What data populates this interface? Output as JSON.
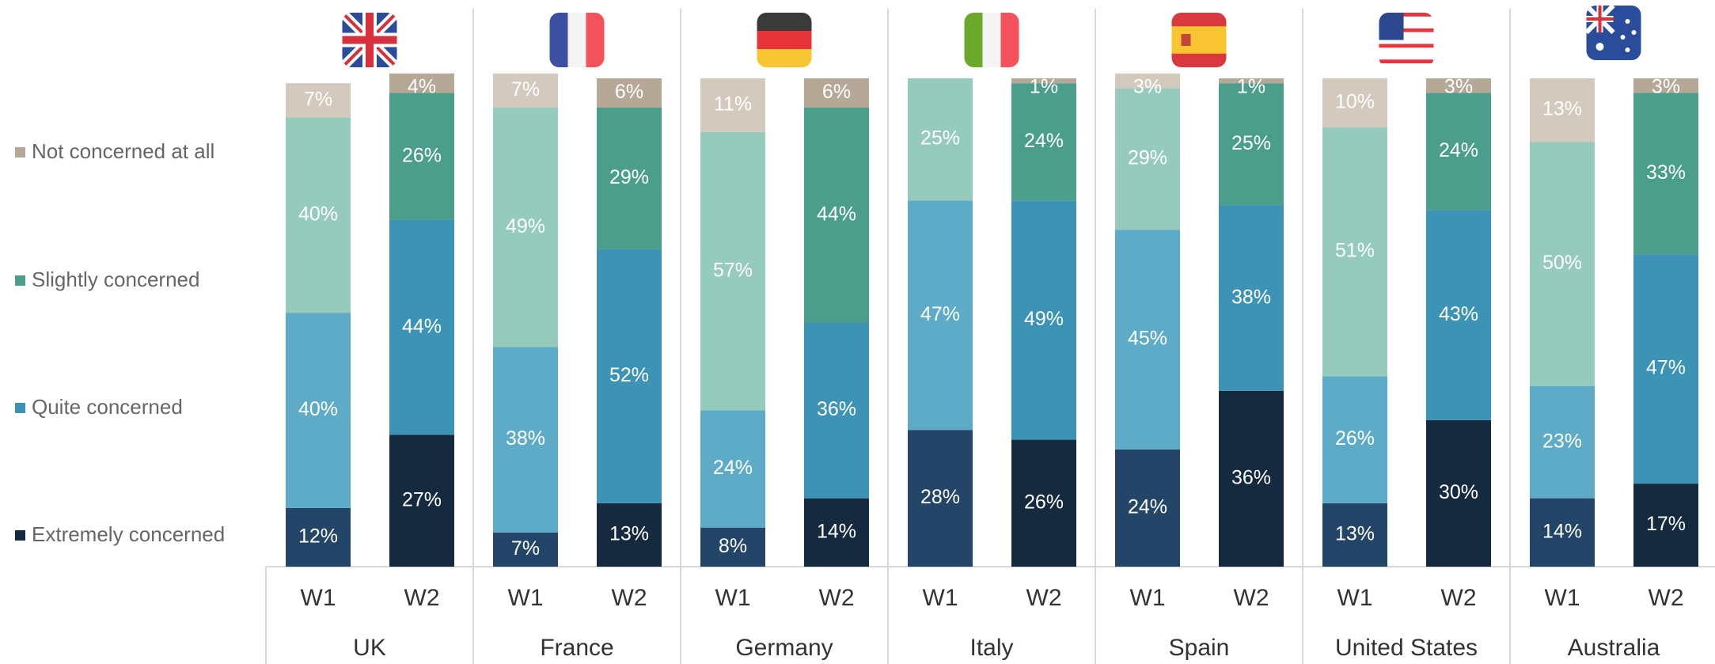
{
  "chart_data": {
    "type": "stacked-bar",
    "groups": [
      "UK",
      "France",
      "Germany",
      "Italy",
      "Spain",
      "United States",
      "Australia"
    ],
    "categories": [
      "W1",
      "W2",
      "W1",
      "W2",
      "W1",
      "W2",
      "W1",
      "W2",
      "W1",
      "W2",
      "W1",
      "W2",
      "W1",
      "W2"
    ],
    "ylim": [
      0,
      100
    ],
    "series": [
      {
        "name": "Extremely concerned",
        "color": "#152a3f",
        "light_color": "#234567",
        "values": [
          12,
          27,
          7,
          13,
          8,
          14,
          28,
          26,
          24,
          36,
          13,
          30,
          14,
          17
        ],
        "value_labels": [
          "12%",
          "27%",
          "7%",
          "13%",
          "8%",
          "14%",
          "28%",
          "26%",
          "24%",
          "36%",
          "13%",
          "30%",
          "14%",
          "17%"
        ]
      },
      {
        "name": "Quite concerned",
        "color": "#3d93b5",
        "light_color": "#5eabc8",
        "values": [
          40,
          44,
          38,
          52,
          24,
          36,
          47,
          49,
          45,
          38,
          26,
          43,
          23,
          47
        ],
        "value_labels": [
          "40%",
          "44%",
          "38%",
          "52%",
          "24%",
          "36%",
          "47%",
          "49%",
          "45%",
          "38%",
          "26%",
          "43%",
          "23%",
          "47%"
        ]
      },
      {
        "name": "Slightly concerned",
        "color": "#4a9e8a",
        "light_color": "#95cbbd",
        "values": [
          40,
          26,
          49,
          29,
          57,
          44,
          25,
          24,
          29,
          25,
          51,
          24,
          50,
          33
        ],
        "value_labels": [
          "40%",
          "26%",
          "49%",
          "29%",
          "57%",
          "44%",
          "25%",
          "24%",
          "29%",
          "25%",
          "51%",
          "24%",
          "50%",
          "33%"
        ]
      },
      {
        "name": "Not concerned at all",
        "color": "#b5a896",
        "light_color": "#d3c9bc",
        "values": [
          7,
          4,
          7,
          6,
          11,
          6,
          null,
          1,
          3,
          1,
          10,
          3,
          13,
          3
        ],
        "value_labels": [
          "7%",
          "4%",
          "7%",
          "6%",
          "11%",
          "6%",
          null,
          "1%",
          "3%",
          "1%",
          "10%",
          "3%",
          "13%",
          "3%"
        ]
      }
    ]
  }
}
